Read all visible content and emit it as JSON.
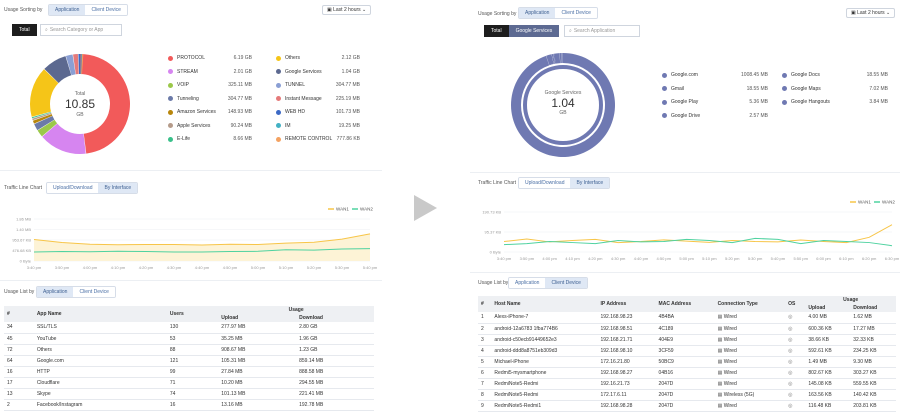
{
  "colors": {
    "wan1": "#f7c548",
    "wan2": "#4fd2a0",
    "donut_right": "#6f79b2"
  },
  "left": {
    "usage_sorting_label": "Usage Sorting by",
    "sort_tabs": [
      "Application",
      "Client Device"
    ],
    "time_range": "Last 2 hours",
    "filter_tab": "Total",
    "search_placeholder": "Search Category or App",
    "donut": {
      "title": "Total",
      "value": "10.85",
      "unit": "GB"
    },
    "legend": [
      {
        "name": "PROTOCOL",
        "value": "6.19 GB",
        "color": "#f25a5a"
      },
      {
        "name": "STREAM",
        "value": "2.01 GB",
        "color": "#d685f0"
      },
      {
        "name": "VOIP",
        "value": "325.11 MB",
        "color": "#9bc84a"
      },
      {
        "name": "Tunneling",
        "value": "304.77 MB",
        "color": "#6b7aa8"
      },
      {
        "name": "Amazon Services",
        "value": "148.93 MB",
        "color": "#b8860b"
      },
      {
        "name": "Apple Services",
        "value": "90.24 MB",
        "color": "#b59b8a"
      },
      {
        "name": "E-Life",
        "value": "8.66 MB",
        "color": "#39c08a"
      },
      {
        "name": "Others",
        "value": "2.12 GB",
        "color": "#f5c518"
      },
      {
        "name": "Google Services",
        "value": "1.04 GB",
        "color": "#5c6990"
      },
      {
        "name": "TUNNEL",
        "value": "304.77 MB",
        "color": "#8a9fd4"
      },
      {
        "name": "Instant Message",
        "value": "225.19 MB",
        "color": "#e57a7a"
      },
      {
        "name": "WEB HD",
        "value": "101.73 MB",
        "color": "#3c69c5"
      },
      {
        "name": "IM",
        "value": "19.25 MB",
        "color": "#42b1c4"
      },
      {
        "name": "REMOTE CONTROL",
        "value": "777.86 KB",
        "color": "#f4a261"
      }
    ],
    "traffic_label": "Traffic Line Chart",
    "traffic_tabs": [
      "Upload/Download",
      "By Interface"
    ],
    "usage_list_label": "Usage List by",
    "list_tabs": [
      "Application",
      "Client Device"
    ],
    "table": {
      "headers": {
        "num": "#",
        "name": "App Name",
        "users": "Users",
        "usage": "Usage",
        "upload": "Upload",
        "download": "Download"
      },
      "rows": [
        [
          "34",
          "SSL/TLS",
          "130",
          "277.97 MB",
          "2.80 GB"
        ],
        [
          "45",
          "YouTube",
          "53",
          "35.25 MB",
          "1.96 GB"
        ],
        [
          "72",
          "Others",
          "88",
          "908.67 MB",
          "1.23 GB"
        ],
        [
          "64",
          "Google.com",
          "121",
          "105.31 MB",
          "859.14 MB"
        ],
        [
          "16",
          "HTTP",
          "99",
          "27.84 MB",
          "888.58 MB"
        ],
        [
          "17",
          "Cloudflare",
          "71",
          "10.20 MB",
          "294.55 MB"
        ],
        [
          "13",
          "Skype",
          "74",
          "101.13 MB",
          "221.41 MB"
        ],
        [
          "2",
          "Facebook/Instagram",
          "16",
          "13.16 MB",
          "192.78 MB"
        ]
      ]
    }
  },
  "right": {
    "usage_sorting_label": "Usage Sorting by",
    "sort_tabs": [
      "Application",
      "Client Device"
    ],
    "time_range": "Last 2 hours",
    "filter_tabs": [
      "Total",
      "Google Services"
    ],
    "search_placeholder": "Search Application",
    "donut": {
      "title": "Google Services",
      "value": "1.04",
      "unit": "GB"
    },
    "legend": [
      {
        "name": "Google.com",
        "value": "1008.45 MB"
      },
      {
        "name": "Gmail",
        "value": "18.55 MB"
      },
      {
        "name": "Google Play",
        "value": "5.36 MB"
      },
      {
        "name": "Google Drive",
        "value": "2.57 MB"
      },
      {
        "name": "Google Docs",
        "value": "18.55 MB"
      },
      {
        "name": "Google Maps",
        "value": "7.02 MB"
      },
      {
        "name": "Google Hangouts",
        "value": "3.84 MB"
      }
    ],
    "traffic_label": "Traffic Line Chart",
    "traffic_tabs": [
      "Upload/Download",
      "By Interface"
    ],
    "usage_list_label": "Usage List by",
    "list_tabs": [
      "Application",
      "Client Device"
    ],
    "table": {
      "headers": {
        "num": "#",
        "host": "Host Name",
        "ip": "IP Address",
        "mac": "MAC Address",
        "conn": "Connection Type",
        "os": "OS",
        "usage": "Usage",
        "upload": "Upload",
        "download": "Download"
      },
      "rows": [
        [
          "1",
          "Alexs-iPhone-7",
          "192.168.98.23",
          "4B4BA",
          "Wired",
          "4.00 MB",
          "1.62 MB"
        ],
        [
          "2",
          "android-12a6783 1fba774B6",
          "192.168.98.51",
          "4C189",
          "Wired",
          "600.36 KB",
          "17.27 MB"
        ],
        [
          "3",
          "android-c50ecb91449652e3",
          "192.168.21.71",
          "404E9",
          "Wired",
          "38.66 KB",
          "32.33 KB"
        ],
        [
          "4",
          "android-ddd8a8751eb309d3",
          "192.168.98.10",
          "3CF59",
          "Wired",
          "592.61 KB",
          "234.25 KB"
        ],
        [
          "5",
          "Michael-iPhone",
          "172.16.21.80",
          "50BC9",
          "Wired",
          "1.49 MB",
          "9.30 MB"
        ],
        [
          "6",
          "Redmi5-mysmartphone",
          "192.168.98.27",
          "04B16",
          "Wired",
          "802.67 KB",
          "303.27 KB"
        ],
        [
          "7",
          "RedmiNote5-Redmi",
          "192.16.21.73",
          "2047D",
          "Wired",
          "145.08 KB",
          "559.55 KB"
        ],
        [
          "8",
          "RedmiNote5-Redmi",
          "172.17.6.11",
          "2047D",
          "Wireless (5G)",
          "163.56 KB",
          "140.42 KB"
        ],
        [
          "9",
          "RedmiNote5-Redmi1",
          "192.168.98.28",
          "2047D",
          "Wired",
          "116.48 KB",
          "203.81 KB"
        ]
      ]
    }
  },
  "chart_data": [
    {
      "type": "line",
      "x": [
        "3:40 pm",
        "3:50 pm",
        "4:00 pm",
        "4:10 pm",
        "4:20 pm",
        "4:30 pm",
        "4:40 pm",
        "4:50 pm",
        "5:00 pm",
        "5:10 pm",
        "5:20 pm",
        "5:30 pm",
        "5:40 pm"
      ],
      "yticks": [
        "0 Byte",
        "476.68 KB",
        "953.67 KB",
        "1.40 MB",
        "1.86 MB"
      ],
      "ylim": [
        0,
        1.86
      ],
      "series": [
        {
          "name": "WAN1",
          "values": [
            0.95,
            0.82,
            0.74,
            0.72,
            0.73,
            0.73,
            0.71,
            0.74,
            0.73,
            0.79,
            0.83,
            0.97,
            1.2
          ]
        },
        {
          "name": "WAN2",
          "values": [
            0.4,
            0.42,
            0.41,
            0.43,
            0.42,
            0.4,
            0.4,
            0.42,
            0.43,
            0.5,
            0.48,
            0.53,
            0.55
          ]
        }
      ],
      "legend": "top-right"
    },
    {
      "type": "line",
      "x": [
        "3:40 pm",
        "3:50 pm",
        "4:00 pm",
        "4:10 pm",
        "4:20 pm",
        "4:30 pm",
        "4:40 pm",
        "4:50 pm",
        "5:00 pm",
        "5:10 pm",
        "5:20 pm",
        "5:30 pm",
        "5:40 pm",
        "5:50 pm",
        "6:00 pm",
        "6:10 pm",
        "6:20 pm",
        "6:30 pm"
      ],
      "yticks": [
        "0 Byte",
        "95.37 KB",
        "190.73 KB"
      ],
      "ylim": [
        0,
        190.73
      ],
      "series": [
        {
          "name": "WAN1",
          "values": [
            50,
            62,
            48,
            55,
            60,
            45,
            50,
            58,
            52,
            46,
            55,
            50,
            48,
            57,
            50,
            45,
            70,
            130
          ]
        },
        {
          "name": "WAN2",
          "values": [
            35,
            40,
            50,
            45,
            40,
            55,
            48,
            50,
            60,
            55,
            45,
            65,
            60,
            40,
            55,
            50,
            45,
            30
          ]
        }
      ],
      "legend": "top-right"
    }
  ]
}
